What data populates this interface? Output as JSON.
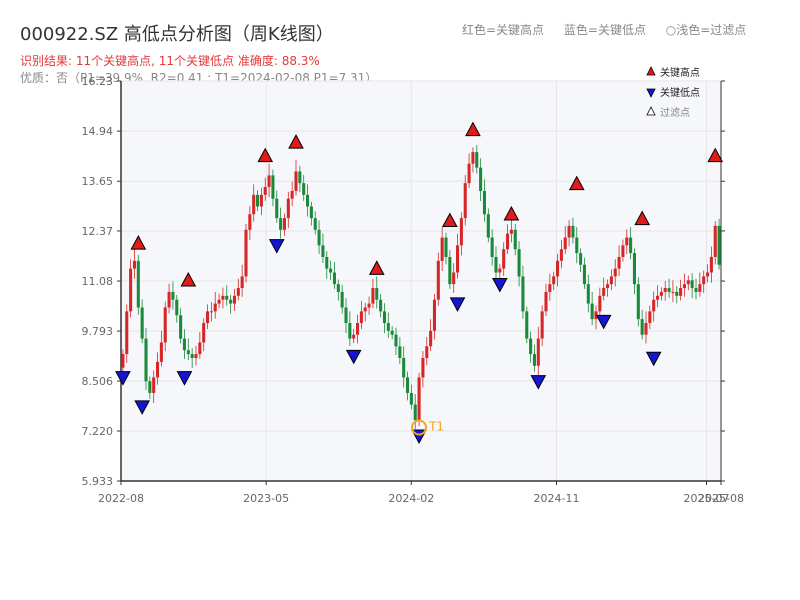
{
  "header": {
    "title": "000922.SZ 高低点分析图（周K线图）",
    "summary": "识别结果: 11个关键高点, 11个关键低点   准确度: 88.3%",
    "quality": "优质：否（P1=39.9%, R2=0.41 ; T1=2024-02-08 P1=7.31）",
    "legend_red": "红色=关键高点",
    "legend_blue": "蓝色=关键低点",
    "legend_light": "○浅色=过滤点"
  },
  "colors": {
    "up": "#d62728",
    "down": "#1a8a3a",
    "high_marker": "#e11b1b",
    "low_marker": "#1515d6",
    "t1": "#f5a623",
    "grid": "#e6e6e6",
    "plot_bg": "#f5f7fa"
  },
  "chart_data": {
    "type": "candlestick",
    "yticks": [
      "16.23",
      "14.94",
      "13.65",
      "12.37",
      "11.08",
      "9.793",
      "8.506",
      "7.220",
      "5.933"
    ],
    "xticks": [
      "2022-08",
      "2023-05",
      "2024-02",
      "2024-11",
      "2025-07",
      "2025-08"
    ],
    "ylim": [
      5.933,
      16.23
    ],
    "grid": true,
    "legend_placement": "top-right",
    "legend": {
      "high": "关键高点",
      "low": "关键低点",
      "filtered": "过滤点"
    },
    "n_bars": 156,
    "close": [
      9.2,
      10.3,
      11.4,
      11.6,
      10.4,
      9.6,
      8.5,
      8.2,
      8.6,
      9.0,
      9.5,
      10.4,
      10.8,
      10.6,
      10.2,
      9.6,
      9.3,
      9.2,
      9.1,
      9.2,
      9.5,
      10.0,
      10.3,
      10.3,
      10.5,
      10.6,
      10.7,
      10.6,
      10.5,
      10.7,
      10.9,
      11.2,
      12.4,
      12.8,
      13.3,
      13.0,
      13.3,
      13.5,
      13.8,
      13.2,
      12.7,
      12.4,
      12.7,
      13.2,
      13.4,
      13.9,
      13.6,
      13.3,
      13.0,
      12.7,
      12.4,
      12.0,
      11.7,
      11.4,
      11.3,
      11.0,
      10.8,
      10.4,
      10.0,
      9.6,
      9.7,
      10.0,
      10.3,
      10.4,
      10.5,
      10.9,
      10.6,
      10.3,
      10.0,
      9.8,
      9.7,
      9.4,
      9.1,
      8.6,
      8.2,
      7.9,
      7.5,
      8.6,
      9.1,
      9.4,
      9.8,
      10.6,
      11.6,
      12.2,
      11.7,
      11.0,
      11.3,
      12.0,
      12.7,
      13.6,
      14.1,
      14.4,
      14.0,
      13.4,
      12.8,
      12.2,
      11.7,
      11.3,
      11.4,
      11.9,
      12.3,
      12.4,
      11.9,
      11.2,
      10.3,
      9.6,
      9.2,
      8.9,
      9.6,
      10.3,
      10.8,
      11.0,
      11.2,
      11.6,
      11.9,
      12.2,
      12.5,
      12.2,
      11.8,
      11.5,
      11.0,
      10.5,
      10.1,
      10.3,
      10.7,
      10.9,
      11.0,
      11.2,
      11.4,
      11.7,
      12.0,
      12.2,
      11.8,
      11.0,
      10.1,
      9.7,
      10.0,
      10.3,
      10.6,
      10.7,
      10.8,
      10.9,
      10.8,
      10.8,
      10.7,
      10.9,
      11.0,
      11.1,
      10.9,
      10.8,
      11.0,
      11.2,
      11.3,
      11.7,
      12.5,
      11.5
    ],
    "key_highs": [
      {
        "bar": 4,
        "price": 11.8
      },
      {
        "bar": 17,
        "price": 10.85
      },
      {
        "bar": 37,
        "price": 14.05
      },
      {
        "bar": 45,
        "price": 14.4
      },
      {
        "bar": 66,
        "price": 11.15
      },
      {
        "bar": 85,
        "price": 12.38
      },
      {
        "bar": 91,
        "price": 14.72
      },
      {
        "bar": 101,
        "price": 12.55
      },
      {
        "bar": 118,
        "price": 13.33
      },
      {
        "bar": 135,
        "price": 12.43
      },
      {
        "bar": 154,
        "price": 14.05
      }
    ],
    "key_lows": [
      {
        "bar": 0,
        "price": 8.85
      },
      {
        "bar": 5,
        "price": 8.1
      },
      {
        "bar": 16,
        "price": 8.85
      },
      {
        "bar": 40,
        "price": 12.25
      },
      {
        "bar": 60,
        "price": 9.4
      },
      {
        "bar": 77,
        "price": 7.35
      },
      {
        "bar": 87,
        "price": 10.75
      },
      {
        "bar": 98,
        "price": 11.25
      },
      {
        "bar": 108,
        "price": 8.75
      },
      {
        "bar": 125,
        "price": 10.3
      },
      {
        "bar": 138,
        "price": 9.35
      }
    ],
    "t1": {
      "label": "T1",
      "bar": 77,
      "price": 7.31
    }
  }
}
